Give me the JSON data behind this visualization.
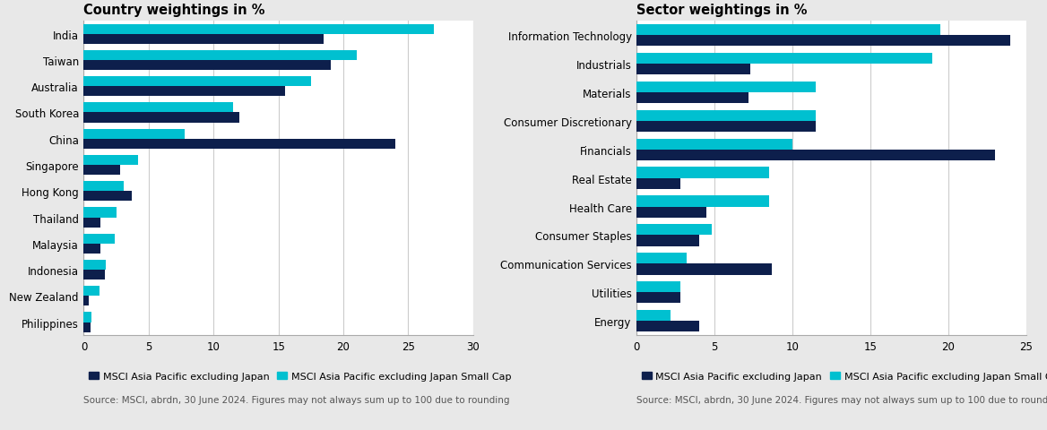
{
  "country_title": "Country weightings in %",
  "sector_title": "Sector weightings in %",
  "country_categories": [
    "India",
    "Taiwan",
    "Australia",
    "South Korea",
    "China",
    "Singapore",
    "Hong Kong",
    "Thailand",
    "Malaysia",
    "Indonesia",
    "New Zealand",
    "Philippines"
  ],
  "country_dark": [
    18.5,
    19.0,
    15.5,
    12.0,
    24.0,
    2.8,
    3.7,
    1.3,
    1.3,
    1.6,
    0.4,
    0.5
  ],
  "country_light": [
    27.0,
    21.0,
    17.5,
    11.5,
    7.8,
    4.2,
    3.1,
    2.5,
    2.4,
    1.7,
    1.2,
    0.6
  ],
  "sector_categories": [
    "Information Technology",
    "Industrials",
    "Materials",
    "Consumer Discretionary",
    "Financials",
    "Real Estate",
    "Health Care",
    "Consumer Staples",
    "Communication Services",
    "Utilities",
    "Energy"
  ],
  "sector_dark": [
    24.0,
    7.3,
    7.2,
    11.5,
    23.0,
    2.8,
    4.5,
    4.0,
    8.7,
    2.8,
    4.0
  ],
  "sector_light": [
    19.5,
    19.0,
    11.5,
    11.5,
    10.0,
    8.5,
    8.5,
    4.8,
    3.2,
    2.8,
    2.2
  ],
  "color_dark": "#0d1f4c",
  "color_light": "#00c0d0",
  "figure_bg": "#e8e8e8",
  "axes_bg": "#ffffff",
  "country_xlim": [
    0,
    30
  ],
  "sector_xlim": [
    0,
    25
  ],
  "country_xticks": [
    0,
    5,
    10,
    15,
    20,
    25,
    30
  ],
  "sector_xticks": [
    0,
    5,
    10,
    15,
    20,
    25
  ],
  "legend_label_dark": "MSCI Asia Pacific excluding Japan",
  "legend_label_light": "MSCI Asia Pacific excluding Japan Small Cap",
  "source_text": "Source: MSCI, abrdn, 30 June 2024. Figures may not always sum up to 100 due to rounding",
  "title_fontsize": 10.5,
  "label_fontsize": 8.5,
  "tick_fontsize": 8.5,
  "legend_fontsize": 8.0,
  "source_fontsize": 7.5,
  "bar_height": 0.38
}
